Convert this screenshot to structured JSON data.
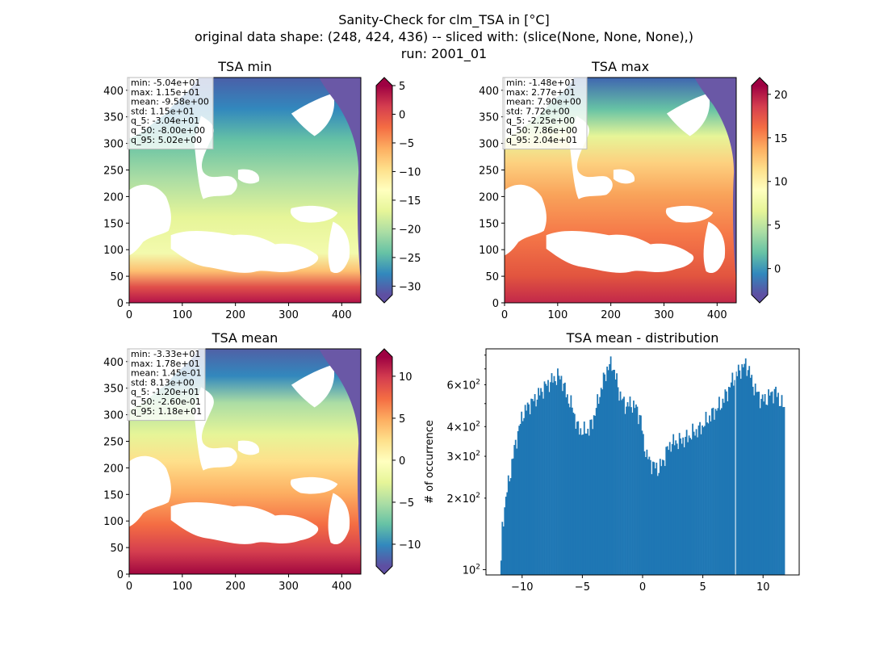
{
  "figure": {
    "title_line1": "Sanity-Check for clm_TSA in [°C]",
    "title_line2": "original data shape: (248, 424, 436) -- sliced with: (slice(None, None, None),)",
    "title_line3": "run: 2001_01",
    "colormap": "Spectral_r",
    "colormap_stops": [
      "#5e4fa2",
      "#3288bd",
      "#66c2a5",
      "#abdda4",
      "#e6f598",
      "#ffffbf",
      "#fee08b",
      "#fdae61",
      "#f46d43",
      "#d53e4f",
      "#9e0142"
    ]
  },
  "chart_data": [
    {
      "type": "heatmap",
      "title": "TSA min",
      "x_ticks": [
        "0",
        "100",
        "200",
        "300",
        "400"
      ],
      "y_ticks": [
        "0",
        "50",
        "100",
        "150",
        "200",
        "250",
        "300",
        "350",
        "400"
      ],
      "xlim": [
        0,
        436
      ],
      "ylim": [
        0,
        424
      ],
      "colorbar": {
        "min": -31.5,
        "max": 5,
        "ticks": [
          "5",
          "0",
          "−5",
          "−10",
          "−15",
          "−20",
          "−25",
          "−30"
        ],
        "extend": "both"
      },
      "stats": [
        "min: -5.04e+01",
        "max: 1.15e+01",
        "mean: -9.58e+00",
        "std: 1.15e+01",
        "q_5: -3.04e+01",
        "q_50: -8.00e+00",
        "q_95: 5.02e+00"
      ]
    },
    {
      "type": "heatmap",
      "title": "TSA max",
      "x_ticks": [
        "0",
        "100",
        "200",
        "300",
        "400"
      ],
      "y_ticks": [
        "0",
        "50",
        "100",
        "150",
        "200",
        "250",
        "300",
        "350",
        "400"
      ],
      "xlim": [
        0,
        436
      ],
      "ylim": [
        0,
        424
      ],
      "colorbar": {
        "min": -3,
        "max": 21,
        "ticks": [
          "20",
          "15",
          "10",
          "5",
          "0"
        ],
        "extend": "both"
      },
      "stats": [
        "min: -1.48e+01",
        "max: 2.77e+01",
        "mean: 7.90e+00",
        "std: 7.72e+00",
        "q_5: -2.25e+00",
        "q_50: 7.86e+00",
        "q_95: 2.04e+01"
      ]
    },
    {
      "type": "heatmap",
      "title": "TSA mean",
      "x_ticks": [
        "0",
        "100",
        "200",
        "300",
        "400"
      ],
      "y_ticks": [
        "0",
        "50",
        "100",
        "150",
        "200",
        "250",
        "300",
        "350",
        "400"
      ],
      "xlim": [
        0,
        436
      ],
      "ylim": [
        0,
        424
      ],
      "colorbar": {
        "min": -12.6,
        "max": 12.3,
        "ticks": [
          "10",
          "5",
          "0",
          "−5",
          "−10"
        ],
        "extend": "both"
      },
      "stats": [
        "min: -3.33e+01",
        "max: 1.78e+01",
        "mean: 1.45e-01",
        "std: 8.13e+00",
        "q_5: -1.20e+01",
        "q_50: -2.60e-01",
        "q_95: 1.18e+01"
      ]
    },
    {
      "type": "bar",
      "title": "TSA mean - distribution",
      "ylabel": "# of occurrence",
      "y_scale": "log",
      "xlim": [
        -13,
        13
      ],
      "ylim": [
        95,
        850
      ],
      "x_ticks": [
        "−10",
        "−5",
        "0",
        "5",
        "10"
      ],
      "y_tick_labels": [
        {
          "base": "10",
          "exp": "2",
          "value": 100
        },
        {
          "base": "2×10",
          "exp": "2",
          "value": 200
        },
        {
          "base": "3×10",
          "exp": "2",
          "value": 300
        },
        {
          "base": "4×10",
          "exp": "2",
          "value": 400
        },
        {
          "base": "6×10",
          "exp": "2",
          "value": 600
        }
      ],
      "bin_start": -11.8,
      "bin_width": 0.1,
      "bar_color": "#1f77b4",
      "anchors_x": [
        -11.8,
        -11.7,
        -11.4,
        -11.0,
        -10.6,
        -10.0,
        -9.4,
        -9.0,
        -8.5,
        -8.0,
        -7.5,
        -7.1,
        -6.8,
        -6.5,
        -6.2,
        -5.8,
        -5.5,
        -5.0,
        -4.5,
        -4.2,
        -3.8,
        -3.4,
        -3.0,
        -2.6,
        -2.3,
        -2.0,
        -1.7,
        -1.4,
        -1.0,
        -0.6,
        -0.2,
        0.0,
        0.3,
        0.8,
        1.3,
        1.7,
        2.0,
        2.3,
        2.7,
        3.2,
        3.7,
        4.2,
        4.7,
        5.2,
        5.7,
        6.0,
        6.5,
        7.0,
        7.5,
        8.0,
        8.5,
        8.8,
        9.0,
        9.4,
        9.8,
        10.2,
        10.6,
        11.0,
        11.3,
        11.7
      ],
      "anchors_y": [
        105,
        150,
        200,
        260,
        340,
        450,
        500,
        520,
        560,
        600,
        630,
        650,
        640,
        570,
        520,
        470,
        400,
        380,
        390,
        420,
        500,
        600,
        700,
        740,
        650,
        560,
        510,
        490,
        500,
        480,
        430,
        350,
        300,
        275,
        265,
        290,
        320,
        340,
        345,
        350,
        360,
        380,
        390,
        420,
        450,
        470,
        500,
        560,
        640,
        690,
        730,
        690,
        620,
        560,
        520,
        520,
        550,
        560,
        520,
        480
      ]
    }
  ]
}
